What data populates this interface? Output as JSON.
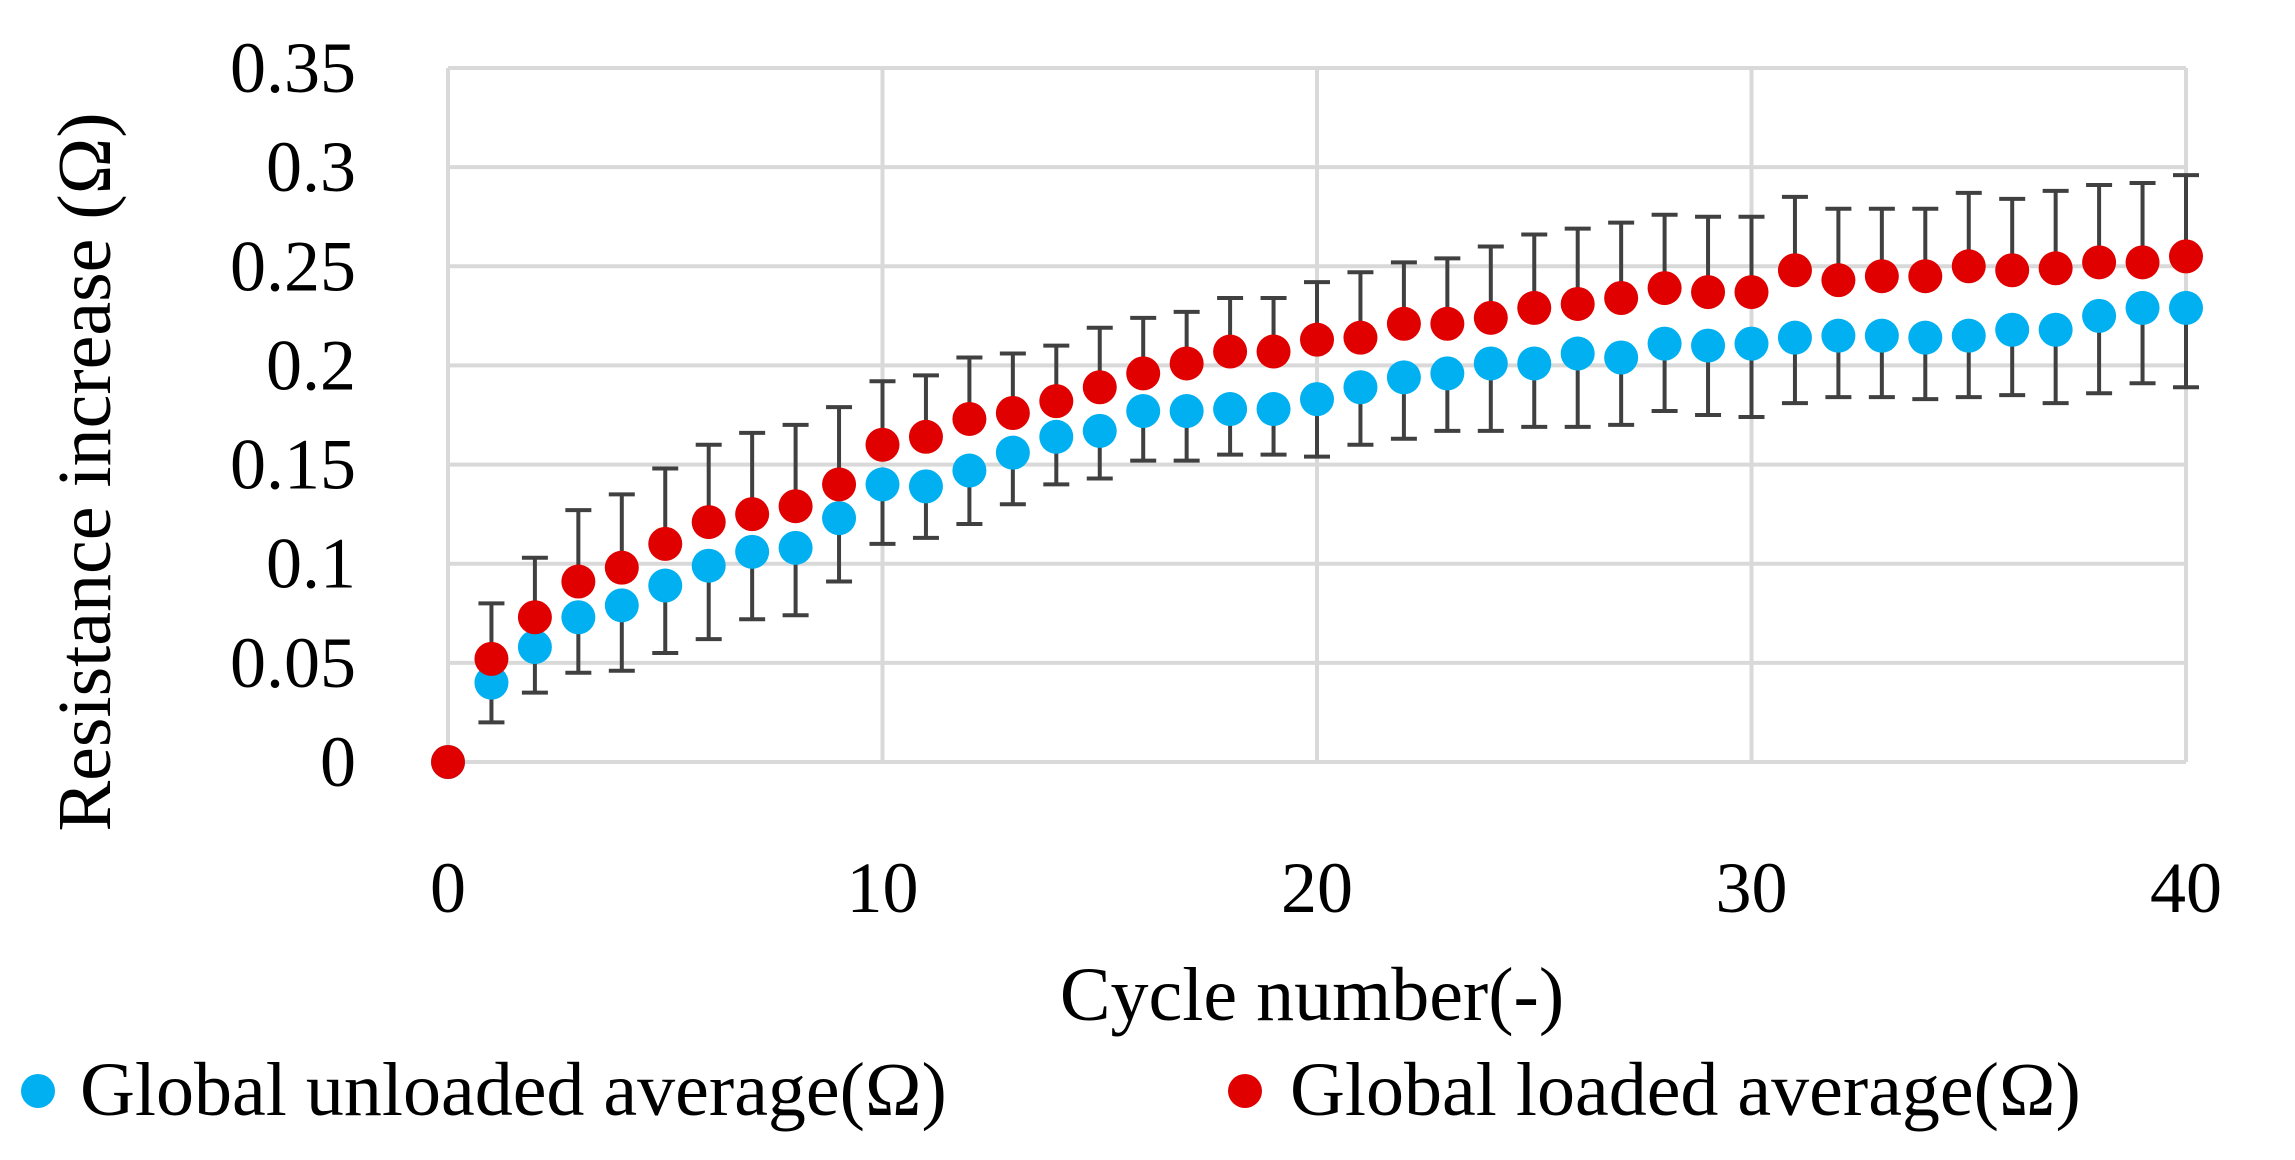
{
  "chart_data": {
    "type": "scatter",
    "title": "",
    "xlabel": "Cycle number(-)",
    "ylabel": "Resistance increase (Ω)",
    "xlim": [
      0,
      40
    ],
    "ylim": [
      0,
      0.35
    ],
    "x_ticks": [
      "0",
      "10",
      "20",
      "30",
      "40"
    ],
    "y_ticks": [
      "0",
      "0.05",
      "0.1",
      "0.15",
      "0.2",
      "0.25",
      "0.3",
      "0.35"
    ],
    "grid": true,
    "legend_position": "bottom",
    "x": [
      0,
      1,
      2,
      3,
      4,
      5,
      6,
      7,
      8,
      9,
      10,
      11,
      12,
      13,
      14,
      15,
      16,
      17,
      18,
      19,
      20,
      21,
      22,
      23,
      24,
      25,
      26,
      27,
      28,
      29,
      30,
      31,
      32,
      33,
      34,
      35,
      36,
      37,
      38,
      39,
      40
    ],
    "series": [
      {
        "name": "Global unloaded average(Ω)",
        "color": "#00b0f0",
        "values": [
          0,
          0.04,
          0.058,
          0.073,
          0.079,
          0.089,
          0.099,
          0.106,
          0.108,
          0.123,
          0.14,
          0.139,
          0.147,
          0.156,
          0.164,
          0.167,
          0.177,
          0.177,
          0.178,
          0.178,
          0.183,
          0.189,
          0.194,
          0.196,
          0.201,
          0.201,
          0.206,
          0.204,
          0.211,
          0.21,
          0.211,
          0.214,
          0.215,
          0.215,
          0.214,
          0.215,
          0.218,
          0.218,
          0.225,
          0.229,
          0.229
        ],
        "error_low": [
          0,
          0.02,
          0.035,
          0.045,
          0.046,
          0.055,
          0.062,
          0.072,
          0.074,
          0.091,
          0.11,
          0.113,
          0.12,
          0.13,
          0.14,
          0.143,
          0.152,
          0.152,
          0.155,
          0.155,
          0.154,
          0.16,
          0.163,
          0.167,
          0.167,
          0.169,
          0.169,
          0.17,
          0.177,
          0.175,
          0.174,
          0.181,
          0.184,
          0.184,
          0.183,
          0.184,
          0.185,
          0.181,
          0.186,
          0.191,
          0.189
        ]
      },
      {
        "name": "Global loaded average(Ω)",
        "color": "#e00000",
        "values": [
          0,
          0.052,
          0.073,
          0.091,
          0.098,
          0.11,
          0.121,
          0.125,
          0.129,
          0.14,
          0.16,
          0.164,
          0.173,
          0.176,
          0.182,
          0.189,
          0.196,
          0.201,
          0.207,
          0.207,
          0.213,
          0.214,
          0.221,
          0.221,
          0.224,
          0.229,
          0.231,
          0.234,
          0.239,
          0.237,
          0.237,
          0.248,
          0.243,
          0.245,
          0.245,
          0.25,
          0.248,
          0.249,
          0.252,
          0.252,
          0.255
        ],
        "error_high": [
          0,
          0.08,
          0.103,
          0.127,
          0.135,
          0.148,
          0.16,
          0.166,
          0.17,
          0.179,
          0.192,
          0.195,
          0.204,
          0.206,
          0.21,
          0.219,
          0.224,
          0.227,
          0.234,
          0.234,
          0.242,
          0.247,
          0.252,
          0.254,
          0.26,
          0.266,
          0.269,
          0.272,
          0.276,
          0.275,
          0.275,
          0.285,
          0.279,
          0.279,
          0.279,
          0.287,
          0.284,
          0.288,
          0.291,
          0.292,
          0.296
        ]
      }
    ]
  }
}
